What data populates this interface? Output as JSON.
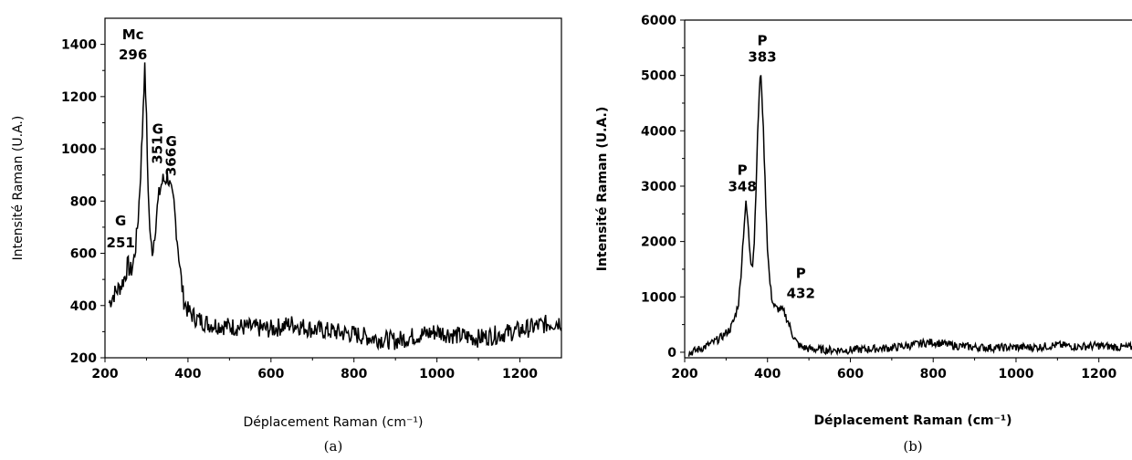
{
  "chart_data": [
    {
      "type": "line",
      "caption": "(a)",
      "xlabel": "Déplacement Raman (cm⁻¹)",
      "ylabel": "Intensité Raman (U.A.)",
      "xlim": [
        200,
        1300
      ],
      "ylim": [
        200,
        1500
      ],
      "xticks": [
        200,
        400,
        600,
        800,
        1000,
        1200
      ],
      "yticks": [
        200,
        400,
        600,
        800,
        1000,
        1200,
        1400
      ],
      "grid": false,
      "series": [
        {
          "x": [
            210,
            220,
            230,
            240,
            250,
            255,
            260,
            265,
            270,
            275,
            280,
            285,
            290,
            293,
            296,
            299,
            302,
            306,
            310,
            315,
            320,
            325,
            330,
            335,
            340,
            345,
            351,
            356,
            361,
            366,
            370,
            375,
            380,
            385,
            390,
            400,
            420,
            450,
            500,
            550,
            600,
            650,
            700,
            750,
            800,
            850,
            900,
            950,
            1000,
            1050,
            1100,
            1150,
            1200,
            1250,
            1300
          ],
          "y": [
            410,
            440,
            460,
            480,
            520,
            560,
            530,
            540,
            580,
            640,
            740,
            880,
            1060,
            1220,
            1300,
            1180,
            960,
            760,
            640,
            610,
            680,
            760,
            820,
            860,
            880,
            880,
            900,
            860,
            820,
            790,
            720,
            640,
            560,
            480,
            420,
            380,
            350,
            330,
            320,
            315,
            310,
            330,
            310,
            300,
            290,
            275,
            265,
            285,
            300,
            285,
            275,
            290,
            305,
            325,
            340
          ]
        }
      ],
      "annotations": [
        {
          "label": "Mc",
          "value": "296",
          "x": 296,
          "y": 1300
        },
        {
          "label": "G",
          "value": "251",
          "x": 251,
          "y": 560
        },
        {
          "label": "G",
          "value": "351",
          "x": 351,
          "y": 900
        },
        {
          "label": "G",
          "value": "366",
          "x": 366,
          "y": 790
        }
      ]
    },
    {
      "type": "line",
      "caption": "(b)",
      "xlabel": "Déplacement Raman (cm⁻¹)",
      "ylabel": "Intensité Raman (U.A.)",
      "xlim": [
        200,
        1280
      ],
      "ylim": [
        -100,
        6000
      ],
      "xticks": [
        200,
        400,
        600,
        800,
        1000,
        1200
      ],
      "yticks": [
        0,
        1000,
        2000,
        3000,
        4000,
        5000,
        6000
      ],
      "grid": false,
      "series": [
        {
          "x": [
            210,
            230,
            250,
            270,
            290,
            310,
            320,
            330,
            335,
            340,
            345,
            348,
            352,
            356,
            360,
            364,
            368,
            372,
            376,
            380,
            383,
            386,
            390,
            395,
            400,
            405,
            410,
            415,
            420,
            425,
            432,
            440,
            450,
            460,
            470,
            480,
            500,
            550,
            600,
            650,
            700,
            750,
            780,
            800,
            820,
            850,
            900,
            950,
            1000,
            1050,
            1100,
            1150,
            1200,
            1250,
            1280
          ],
          "y": [
            -20,
            40,
            100,
            180,
            280,
            420,
            600,
            900,
            1300,
            1900,
            2450,
            2680,
            2400,
            1950,
            1650,
            1600,
            2000,
            2900,
            3900,
            4700,
            5050,
            4750,
            4000,
            2900,
            1900,
            1300,
            1000,
            850,
            800,
            780,
            780,
            720,
            550,
            330,
            180,
            100,
            60,
            40,
            40,
            60,
            80,
            130,
            170,
            180,
            160,
            120,
            90,
            80,
            90,
            90,
            130,
            100,
            120,
            90,
            90
          ]
        }
      ],
      "annotations": [
        {
          "label": "P",
          "value": "383",
          "x": 383,
          "y": 5050
        },
        {
          "label": "P",
          "value": "348",
          "x": 348,
          "y": 2680
        },
        {
          "label": "P",
          "value": "432",
          "x": 432,
          "y": 780
        }
      ]
    }
  ]
}
